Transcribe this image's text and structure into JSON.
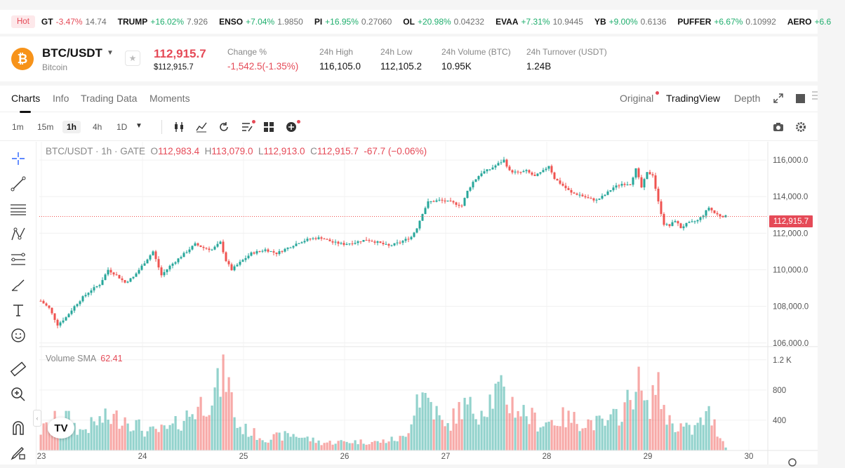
{
  "ticker": {
    "hot_label": "Hot",
    "items": [
      {
        "symbol": "GT",
        "change": "-3.47%",
        "price": "14.74",
        "dir": "down"
      },
      {
        "symbol": "TRUMP",
        "change": "+16.02%",
        "price": "7.926",
        "dir": "up"
      },
      {
        "symbol": "ENSO",
        "change": "+7.04%",
        "price": "1.9850",
        "dir": "up"
      },
      {
        "symbol": "PI",
        "change": "+16.95%",
        "price": "0.27060",
        "dir": "up"
      },
      {
        "symbol": "OL",
        "change": "+20.98%",
        "price": "0.04232",
        "dir": "up"
      },
      {
        "symbol": "EVAA",
        "change": "+7.31%",
        "price": "10.9445",
        "dir": "up"
      },
      {
        "symbol": "YB",
        "change": "+9.00%",
        "price": "0.6136",
        "dir": "up"
      },
      {
        "symbol": "PUFFER",
        "change": "+6.67%",
        "price": "0.10992",
        "dir": "up"
      },
      {
        "symbol": "AERO",
        "change": "+6.6",
        "price": "",
        "dir": "up"
      }
    ]
  },
  "header": {
    "coin_glyph": "₿",
    "pair": "BTC/USDT",
    "coin_name": "Bitcoin",
    "last_price": "112,915.7",
    "last_price_usd": "$112,915.7",
    "stats": [
      {
        "label": "Change %",
        "value": "-1,542.5(-1.35%)",
        "tone": "red"
      },
      {
        "label": "24h High",
        "value": "116,105.0",
        "tone": ""
      },
      {
        "label": "24h Low",
        "value": "112,105.2",
        "tone": ""
      },
      {
        "label": "24h Volume (BTC)",
        "value": "10.95K",
        "tone": ""
      },
      {
        "label": "24h Turnover (USDT)",
        "value": "1.24B",
        "tone": ""
      }
    ]
  },
  "tabs": {
    "main": [
      "Charts",
      "Info",
      "Trading Data",
      "Moments"
    ],
    "views": [
      "Original",
      "TradingView",
      "Depth"
    ]
  },
  "toolbar": {
    "intervals": [
      "1m",
      "15m",
      "1h",
      "4h",
      "1D"
    ],
    "active_interval": "1h"
  },
  "legend": {
    "title": "BTC/USDT · 1h · GATE",
    "o_label": "O",
    "o": "112,983.4",
    "h_label": "H",
    "h": "113,079.0",
    "l_label": "L",
    "l": "112,913.0",
    "c_label": "C",
    "c": "112,915.7",
    "chg": "-67.7 (−0.06%)",
    "volume_label": "Volume SMA",
    "volume_value": "62.41",
    "current_price_tag": "112,915.7",
    "tv_logo": "TV"
  },
  "colors": {
    "up": "#26a69a",
    "down": "#ef5350",
    "accent": "#e54a57"
  },
  "chart_data": {
    "type": "candlestick",
    "title": "BTC/USDT · 1h · GATE",
    "x_labels": [
      "23",
      "24",
      "25",
      "26",
      "27",
      "28",
      "29",
      "30"
    ],
    "price_ticks": [
      "116,000.0",
      "114,000.0",
      "112,000.0",
      "110,000.0",
      "108,000.0",
      "106,000.0"
    ],
    "price_tick_values": [
      116000,
      114000,
      112000,
      110000,
      108000,
      106000
    ],
    "volume_ticks": [
      "1.2 K",
      "800",
      "400"
    ],
    "volume_tick_values": [
      1200,
      800,
      400
    ],
    "ylim": [
      105800,
      117000
    ],
    "vol_ylim": [
      0,
      1300
    ],
    "current_price": 112915.7,
    "close_path": [
      {
        "t": 0,
        "p": 108300
      },
      {
        "t": 3,
        "p": 107900
      },
      {
        "t": 6,
        "p": 107000
      },
      {
        "t": 9,
        "p": 107400
      },
      {
        "t": 12,
        "p": 108000
      },
      {
        "t": 15,
        "p": 108500
      },
      {
        "t": 18,
        "p": 108900
      },
      {
        "t": 21,
        "p": 109200
      },
      {
        "t": 24,
        "p": 110000
      },
      {
        "t": 27,
        "p": 109700
      },
      {
        "t": 30,
        "p": 109300
      },
      {
        "t": 33,
        "p": 109600
      },
      {
        "t": 36,
        "p": 110200
      },
      {
        "t": 40,
        "p": 111000
      },
      {
        "t": 43,
        "p": 109700
      },
      {
        "t": 46,
        "p": 110200
      },
      {
        "t": 49,
        "p": 110600
      },
      {
        "t": 52,
        "p": 111000
      },
      {
        "t": 55,
        "p": 111400
      },
      {
        "t": 58,
        "p": 111200
      },
      {
        "t": 61,
        "p": 111100
      },
      {
        "t": 64,
        "p": 111500
      },
      {
        "t": 66,
        "p": 110500
      },
      {
        "t": 68,
        "p": 110000
      },
      {
        "t": 71,
        "p": 110400
      },
      {
        "t": 75,
        "p": 110900
      },
      {
        "t": 80,
        "p": 111100
      },
      {
        "t": 84,
        "p": 110900
      },
      {
        "t": 88,
        "p": 111200
      },
      {
        "t": 92,
        "p": 111500
      },
      {
        "t": 96,
        "p": 111700
      },
      {
        "t": 100,
        "p": 111750
      },
      {
        "t": 104,
        "p": 111500
      },
      {
        "t": 108,
        "p": 111400
      },
      {
        "t": 112,
        "p": 111500
      },
      {
        "t": 116,
        "p": 111650
      },
      {
        "t": 120,
        "p": 111500
      },
      {
        "t": 124,
        "p": 111300
      },
      {
        "t": 128,
        "p": 111500
      },
      {
        "t": 132,
        "p": 111800
      },
      {
        "t": 134,
        "p": 112300
      },
      {
        "t": 136,
        "p": 113100
      },
      {
        "t": 138,
        "p": 113700
      },
      {
        "t": 142,
        "p": 113800
      },
      {
        "t": 146,
        "p": 113700
      },
      {
        "t": 150,
        "p": 113500
      },
      {
        "t": 152,
        "p": 114300
      },
      {
        "t": 154,
        "p": 114800
      },
      {
        "t": 157,
        "p": 115300
      },
      {
        "t": 160,
        "p": 115500
      },
      {
        "t": 163,
        "p": 115800
      },
      {
        "t": 165,
        "p": 116000
      },
      {
        "t": 167,
        "p": 115400
      },
      {
        "t": 170,
        "p": 115300
      },
      {
        "t": 173,
        "p": 115400
      },
      {
        "t": 176,
        "p": 115100
      },
      {
        "t": 179,
        "p": 115400
      },
      {
        "t": 181,
        "p": 115700
      },
      {
        "t": 183,
        "p": 115000
      },
      {
        "t": 186,
        "p": 114600
      },
      {
        "t": 189,
        "p": 114200
      },
      {
        "t": 192,
        "p": 114100
      },
      {
        "t": 195,
        "p": 113900
      },
      {
        "t": 198,
        "p": 113800
      },
      {
        "t": 201,
        "p": 114100
      },
      {
        "t": 204,
        "p": 114500
      },
      {
        "t": 207,
        "p": 114700
      },
      {
        "t": 210,
        "p": 114700
      },
      {
        "t": 212,
        "p": 115500
      },
      {
        "t": 214,
        "p": 114500
      },
      {
        "t": 216,
        "p": 115300
      },
      {
        "t": 218,
        "p": 115200
      },
      {
        "t": 220,
        "p": 113700
      },
      {
        "t": 222,
        "p": 112500
      },
      {
        "t": 224,
        "p": 112400
      },
      {
        "t": 226,
        "p": 112700
      },
      {
        "t": 228,
        "p": 112300
      },
      {
        "t": 230,
        "p": 112500
      },
      {
        "t": 232,
        "p": 112600
      },
      {
        "t": 234,
        "p": 112700
      },
      {
        "t": 236,
        "p": 113000
      },
      {
        "t": 238,
        "p": 113400
      },
      {
        "t": 240,
        "p": 113100
      },
      {
        "t": 242,
        "p": 112950
      },
      {
        "t": 244,
        "p": 112915.7
      }
    ],
    "volume_path": [
      {
        "t": 0,
        "v": 300
      },
      {
        "t": 8,
        "v": 560
      },
      {
        "t": 14,
        "v": 300
      },
      {
        "t": 22,
        "v": 480
      },
      {
        "t": 30,
        "v": 520
      },
      {
        "t": 38,
        "v": 280
      },
      {
        "t": 46,
        "v": 330
      },
      {
        "t": 54,
        "v": 600
      },
      {
        "t": 62,
        "v": 900
      },
      {
        "t": 66,
        "v": 1200
      },
      {
        "t": 70,
        "v": 380
      },
      {
        "t": 80,
        "v": 180
      },
      {
        "t": 90,
        "v": 250
      },
      {
        "t": 100,
        "v": 120
      },
      {
        "t": 110,
        "v": 140
      },
      {
        "t": 120,
        "v": 130
      },
      {
        "t": 130,
        "v": 200
      },
      {
        "t": 134,
        "v": 880
      },
      {
        "t": 138,
        "v": 820
      },
      {
        "t": 144,
        "v": 330
      },
      {
        "t": 150,
        "v": 680
      },
      {
        "t": 156,
        "v": 620
      },
      {
        "t": 163,
        "v": 920
      },
      {
        "t": 170,
        "v": 650
      },
      {
        "t": 178,
        "v": 420
      },
      {
        "t": 186,
        "v": 500
      },
      {
        "t": 194,
        "v": 450
      },
      {
        "t": 202,
        "v": 400
      },
      {
        "t": 210,
        "v": 780
      },
      {
        "t": 212,
        "v": 1150
      },
      {
        "t": 216,
        "v": 600
      },
      {
        "t": 219,
        "v": 1040
      },
      {
        "t": 224,
        "v": 450
      },
      {
        "t": 232,
        "v": 300
      },
      {
        "t": 238,
        "v": 560
      },
      {
        "t": 244,
        "v": 60
      }
    ]
  }
}
